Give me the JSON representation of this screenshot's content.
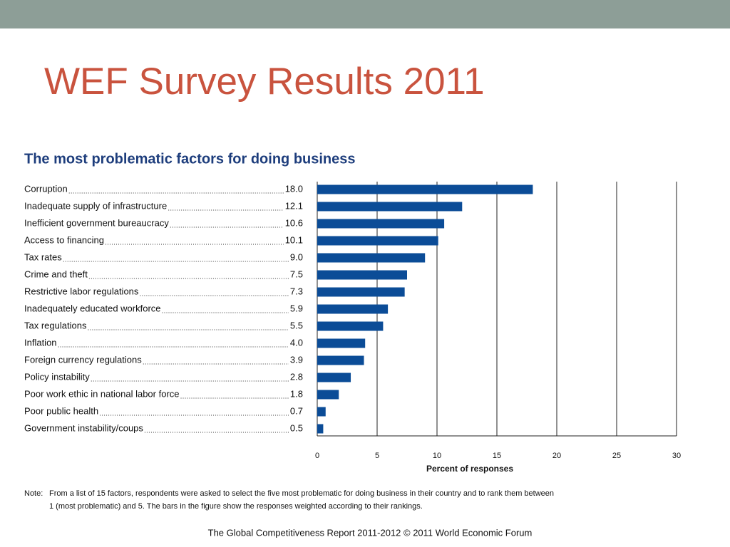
{
  "slide_title": "WEF Survey Results 2011",
  "chart_data": {
    "type": "barh",
    "title": "The most problematic factors for doing business",
    "categories": [
      "Corruption",
      "Inadequate supply of infrastructure",
      "Inefficient government bureaucracy",
      "Access to financing",
      "Tax rates",
      "Crime and theft",
      "Restrictive labor regulations",
      "Inadequately educated workforce",
      "Tax regulations",
      "Inflation",
      "Foreign currency regulations",
      "Policy instability",
      "Poor work ethic in national labor force",
      "Poor public health",
      "Government instability/coups"
    ],
    "values": [
      18.0,
      12.1,
      10.6,
      10.1,
      9.0,
      7.5,
      7.3,
      5.9,
      5.5,
      4.0,
      3.9,
      2.8,
      1.8,
      0.7,
      0.5
    ],
    "value_labels": [
      "18.0",
      "12.1",
      "10.6",
      "10.1",
      "9.0",
      "7.5",
      "7.3",
      "5.9",
      "5.5",
      "4.0",
      "3.9",
      "2.8",
      "1.8",
      "0.7",
      "0.5"
    ],
    "color": "#0b4c97",
    "xlim": [
      0,
      30
    ],
    "xticks": [
      0,
      5,
      10,
      15,
      20,
      25,
      30
    ],
    "xlabel": "Percent of responses",
    "grid": true
  },
  "note": {
    "label": "Note:",
    "lines": [
      "From a list of 15 factors, respondents were asked to select the five most problematic for doing business in their country and to rank them between",
      "1 (most problematic) and 5. The bars in the figure show the responses weighted according to their rankings."
    ]
  },
  "footer": "The Global Competitiveness Report 2011-2012 © 2011 World Economic Forum"
}
